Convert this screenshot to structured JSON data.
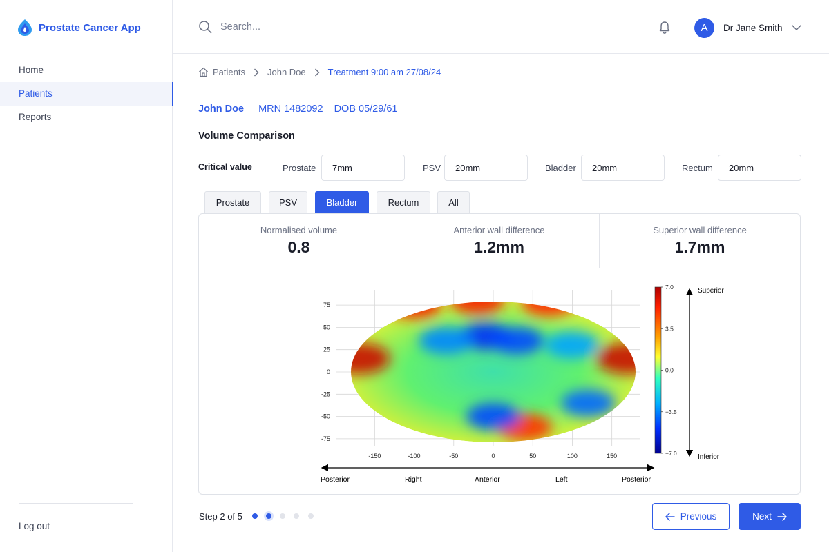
{
  "app": {
    "title": "Prostate Cancer App",
    "brand_color": "#2f5be6"
  },
  "sidebar": {
    "items": [
      {
        "label": "Home",
        "active": false
      },
      {
        "label": "Patients",
        "active": true
      },
      {
        "label": "Reports",
        "active": false
      }
    ],
    "logout_label": "Log out"
  },
  "header": {
    "search_placeholder": "Search...",
    "notification_icon": "bell-icon",
    "user": {
      "initial": "A",
      "name": "Dr Jane Smith"
    }
  },
  "breadcrumb": {
    "items": [
      "Patients",
      "John Doe",
      "Treatment 9:00 am 27/08/24"
    ]
  },
  "patient": {
    "name": "John Doe",
    "mrn": "MRN 1482092",
    "dob": "DOB 05/29/61"
  },
  "section_title": "Volume Comparison",
  "critical": {
    "label": "Critical value",
    "fields": [
      {
        "label": "Prostate",
        "value": "7mm"
      },
      {
        "label": "PSV",
        "value": "20mm"
      },
      {
        "label": "Bladder",
        "value": "20mm"
      },
      {
        "label": "Rectum",
        "value": "20mm"
      }
    ]
  },
  "tabs": [
    {
      "label": "Prostate",
      "active": false
    },
    {
      "label": "PSV",
      "active": false
    },
    {
      "label": "Bladder",
      "active": true
    },
    {
      "label": "Rectum",
      "active": false
    },
    {
      "label": "All",
      "active": false
    }
  ],
  "stats": [
    {
      "label": "Normalised volume",
      "value": "0.8"
    },
    {
      "label": "Anterior wall difference",
      "value": "1.2mm"
    },
    {
      "label": "Superior wall difference",
      "value": "1.7mm"
    }
  ],
  "chart_data": {
    "type": "heatmap",
    "projection": "elliptical surface map",
    "x_ticks": [
      -150,
      -100,
      -50,
      0,
      50,
      100,
      150
    ],
    "y_ticks": [
      75,
      50,
      25,
      0,
      -25,
      -50,
      -75
    ],
    "xlim": [
      -180,
      180
    ],
    "ylim": [
      -90,
      90
    ],
    "colorbar": {
      "min": -7.0,
      "max": 7.0,
      "ticks": [
        "7.0",
        "3.5",
        "0.0",
        "−3.5",
        "−7.0"
      ]
    },
    "x_direction_labels": [
      "Posterior",
      "Right",
      "Anterior",
      "Left",
      "Posterior"
    ],
    "y_direction_labels": {
      "top": "Superior",
      "bottom": "Inferior"
    },
    "hotspots": [
      {
        "x": -170,
        "y": 15,
        "value": 6.5
      },
      {
        "x": 170,
        "y": 15,
        "value": 6.5
      },
      {
        "x": -100,
        "y": 75,
        "value": 5.5
      },
      {
        "x": -20,
        "y": 80,
        "value": 5.5
      },
      {
        "x": 70,
        "y": 78,
        "value": 5.2
      },
      {
        "x": 40,
        "y": -62,
        "value": 5.0
      },
      {
        "x": -10,
        "y": 40,
        "value": -5.0
      },
      {
        "x": 30,
        "y": 35,
        "value": -4.5
      },
      {
        "x": -60,
        "y": 35,
        "value": -3.5
      },
      {
        "x": 0,
        "y": -50,
        "value": -4.5
      },
      {
        "x": 120,
        "y": -35,
        "value": -4.0
      },
      {
        "x": 100,
        "y": 30,
        "value": -3.0
      }
    ]
  },
  "stepper": {
    "text": "Step 2 of 5",
    "current": 2,
    "total": 5
  },
  "buttons": {
    "previous": "Previous",
    "next": "Next"
  }
}
